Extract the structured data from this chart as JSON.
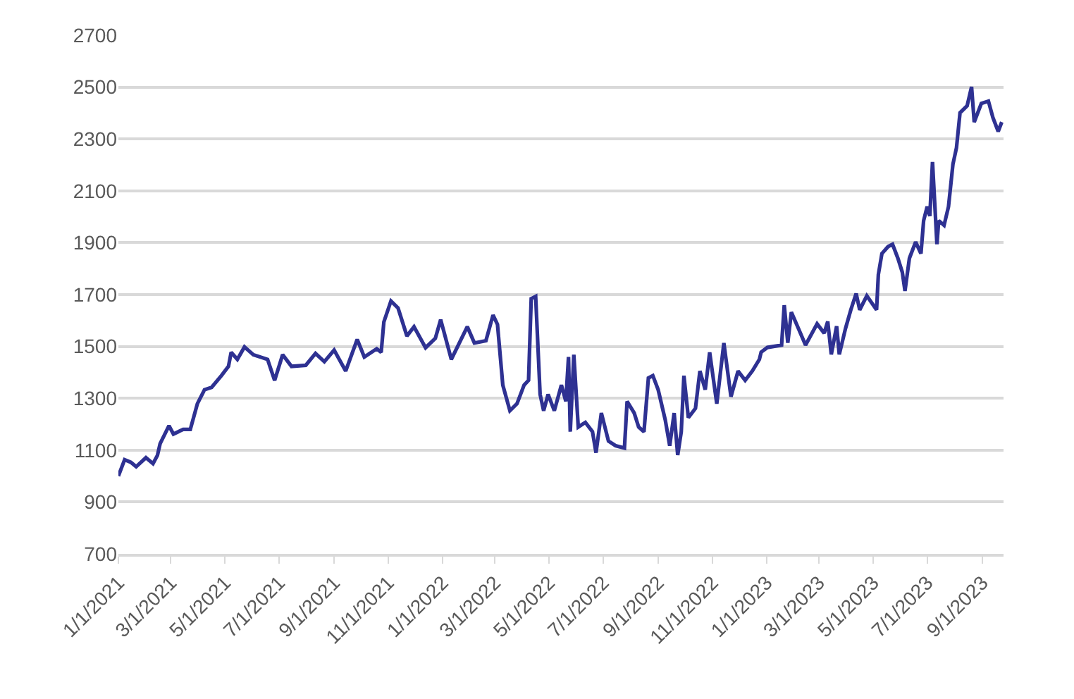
{
  "chart_data": {
    "type": "line",
    "xlim": [
      "2021-01-01",
      "2023-09-25"
    ],
    "ylim": [
      700,
      2700
    ],
    "yticks": [
      700,
      900,
      1100,
      1300,
      1500,
      1700,
      1900,
      2100,
      2300,
      2500,
      2700
    ],
    "xticks": [
      {
        "value": "2021-01-01",
        "label": "1/1/2021"
      },
      {
        "value": "2021-03-01",
        "label": "3/1/2021"
      },
      {
        "value": "2021-05-01",
        "label": "5/1/2021"
      },
      {
        "value": "2021-07-01",
        "label": "7/1/2021"
      },
      {
        "value": "2021-09-01",
        "label": "9/1/2021"
      },
      {
        "value": "2021-11-01",
        "label": "11/1/2021"
      },
      {
        "value": "2022-01-01",
        "label": "1/1/2022"
      },
      {
        "value": "2022-03-01",
        "label": "3/1/2022"
      },
      {
        "value": "2022-05-01",
        "label": "5/1/2022"
      },
      {
        "value": "2022-07-01",
        "label": "7/1/2022"
      },
      {
        "value": "2022-09-01",
        "label": "9/1/2022"
      },
      {
        "value": "2022-11-01",
        "label": "11/1/2022"
      },
      {
        "value": "2023-01-01",
        "label": "1/1/2023"
      },
      {
        "value": "2023-03-01",
        "label": "3/1/2023"
      },
      {
        "value": "2023-05-01",
        "label": "5/1/2023"
      },
      {
        "value": "2023-07-01",
        "label": "7/1/2023"
      },
      {
        "value": "2023-09-01",
        "label": "9/1/2023"
      }
    ],
    "grid": "y",
    "marker": "none",
    "line_style": "solid",
    "x": [
      "2021-01-01",
      "2021-01-08",
      "2021-01-15",
      "2021-01-21",
      "2021-02-01",
      "2021-02-09",
      "2021-02-14",
      "2021-02-17",
      "2021-02-27",
      "2021-03-04",
      "2021-03-15",
      "2021-03-23",
      "2021-03-31",
      "2021-04-08",
      "2021-04-16",
      "2021-04-27",
      "2021-05-05",
      "2021-05-08",
      "2021-05-15",
      "2021-05-23",
      "2021-06-02",
      "2021-06-18",
      "2021-06-26",
      "2021-07-05",
      "2021-07-15",
      "2021-07-31",
      "2021-08-11",
      "2021-08-21",
      "2021-09-01",
      "2021-09-14",
      "2021-09-27",
      "2021-10-05",
      "2021-10-19",
      "2021-10-24",
      "2021-10-27",
      "2021-11-04",
      "2021-11-12",
      "2021-11-22",
      "2021-11-30",
      "2021-12-13",
      "2021-12-24",
      "2021-12-30",
      "2022-01-11",
      "2022-01-29",
      "2022-02-06",
      "2022-02-19",
      "2022-02-27",
      "2022-03-04",
      "2022-03-10",
      "2022-03-18",
      "2022-03-26",
      "2022-04-03",
      "2022-04-08",
      "2022-04-11",
      "2022-04-16",
      "2022-04-21",
      "2022-04-25",
      "2022-04-30",
      "2022-05-07",
      "2022-05-15",
      "2022-05-20",
      "2022-05-23",
      "2022-05-25",
      "2022-05-29",
      "2022-06-03",
      "2022-06-11",
      "2022-06-19",
      "2022-06-23",
      "2022-06-29",
      "2022-07-07",
      "2022-07-15",
      "2022-07-25",
      "2022-07-28",
      "2022-08-05",
      "2022-08-10",
      "2022-08-16",
      "2022-08-21",
      "2022-08-26",
      "2022-09-01",
      "2022-09-09",
      "2022-09-14",
      "2022-09-19",
      "2022-09-23",
      "2022-09-27",
      "2022-09-30",
      "2022-10-05",
      "2022-10-13",
      "2022-10-18",
      "2022-10-24",
      "2022-10-29",
      "2022-11-06",
      "2022-11-14",
      "2022-11-22",
      "2022-11-30",
      "2022-12-08",
      "2022-12-16",
      "2022-12-24",
      "2022-12-26",
      "2023-01-02",
      "2023-01-18",
      "2023-01-21",
      "2023-01-25",
      "2023-01-29",
      "2023-02-06",
      "2023-02-14",
      "2023-02-27",
      "2023-03-07",
      "2023-03-11",
      "2023-03-15",
      "2023-03-21",
      "2023-03-24",
      "2023-03-31",
      "2023-04-06",
      "2023-04-12",
      "2023-04-16",
      "2023-04-24",
      "2023-05-05",
      "2023-05-07",
      "2023-05-11",
      "2023-05-18",
      "2023-05-23",
      "2023-05-29",
      "2023-06-03",
      "2023-06-06",
      "2023-06-11",
      "2023-06-18",
      "2023-06-24",
      "2023-06-27",
      "2023-07-01",
      "2023-07-04",
      "2023-07-07",
      "2023-07-12",
      "2023-07-14",
      "2023-07-20",
      "2023-07-25",
      "2023-07-30",
      "2023-08-03",
      "2023-08-07",
      "2023-08-15",
      "2023-08-20",
      "2023-08-23",
      "2023-08-31",
      "2023-09-08",
      "2023-09-13",
      "2023-09-19",
      "2023-09-23"
    ],
    "series": [
      {
        "color": "#2e3192",
        "values": [
          1000,
          1063,
          1053,
          1036,
          1071,
          1048,
          1080,
          1125,
          1194,
          1162,
          1180,
          1180,
          1279,
          1333,
          1342,
          1387,
          1423,
          1477,
          1450,
          1498,
          1468,
          1450,
          1369,
          1468,
          1423,
          1427,
          1473,
          1441,
          1486,
          1405,
          1527,
          1459,
          1491,
          1477,
          1594,
          1675,
          1648,
          1540,
          1576,
          1495,
          1531,
          1603,
          1450,
          1576,
          1513,
          1522,
          1621,
          1585,
          1351,
          1252,
          1279,
          1351,
          1369,
          1684,
          1693,
          1315,
          1252,
          1315,
          1252,
          1351,
          1288,
          1459,
          1171,
          1468,
          1189,
          1207,
          1171,
          1090,
          1243,
          1135,
          1117,
          1108,
          1288,
          1243,
          1189,
          1171,
          1378,
          1387,
          1333,
          1216,
          1117,
          1243,
          1081,
          1171,
          1387,
          1225,
          1261,
          1405,
          1333,
          1477,
          1279,
          1513,
          1306,
          1405,
          1369,
          1405,
          1450,
          1478,
          1496,
          1505,
          1659,
          1514,
          1632,
          1569,
          1505,
          1587,
          1551,
          1596,
          1469,
          1578,
          1469,
          1569,
          1641,
          1704,
          1641,
          1695,
          1641,
          1777,
          1858,
          1885,
          1894,
          1840,
          1786,
          1714,
          1840,
          1903,
          1858,
          1985,
          2039,
          2003,
          2211,
          1894,
          1985,
          1967,
          2039,
          2202,
          2266,
          2401,
          2428,
          2501,
          2365,
          2437,
          2446,
          2383,
          2329,
          2365
        ]
      }
    ]
  }
}
